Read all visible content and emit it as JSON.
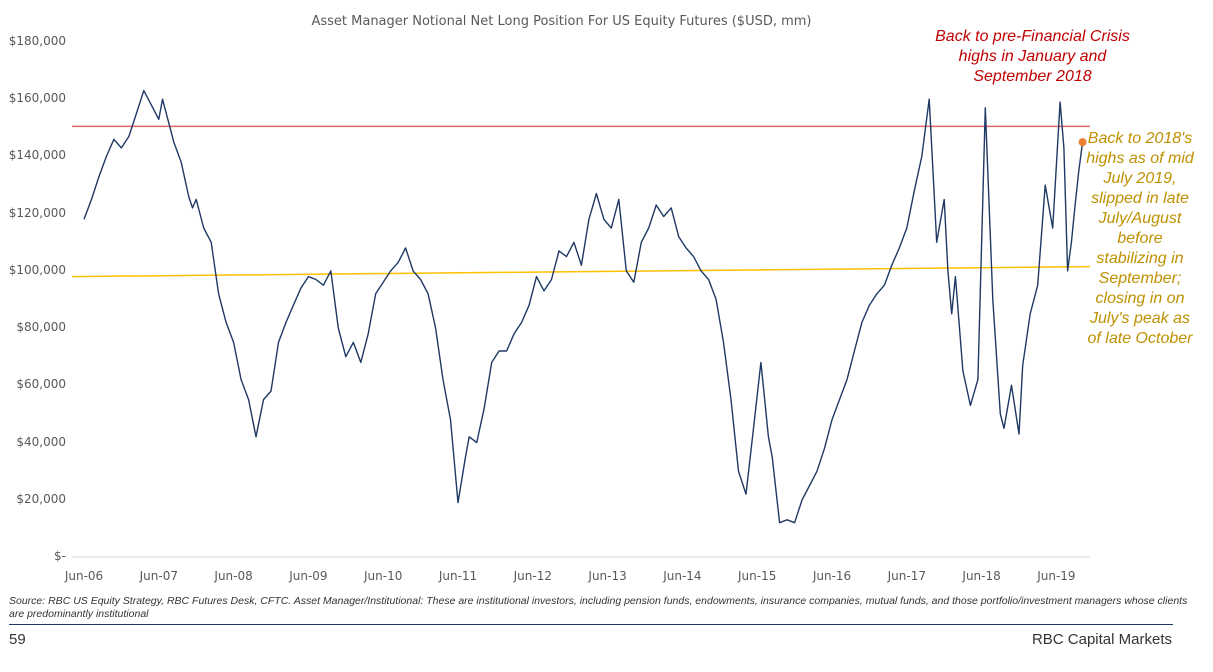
{
  "chart_data": {
    "type": "line",
    "title": "Asset Manager Notional Net Long Position For US Equity Futures ($USD, mm)",
    "xlabel": "",
    "ylabel": "",
    "ylim": [
      0,
      180000
    ],
    "y_ticks": [
      "$180,000",
      "$160,000",
      "$140,000",
      "$120,000",
      "$100,000",
      "$80,000",
      "$60,000",
      "$40,000",
      "$20,000",
      "$-"
    ],
    "x_ticks": [
      "Jun-06",
      "Jun-07",
      "Jun-08",
      "Jun-09",
      "Jun-10",
      "Jun-11",
      "Jun-12",
      "Jun-13",
      "Jun-14",
      "Jun-15",
      "Jun-16",
      "Jun-17",
      "Jun-18",
      "Jun-19"
    ],
    "grid": false,
    "series": [
      {
        "color": "#1f3864",
        "x": [
          2006.5,
          2006.6,
          2006.7,
          2006.8,
          2006.9,
          2007.0,
          2007.1,
          2007.2,
          2007.3,
          2007.4,
          2007.5,
          2007.55,
          2007.6,
          2007.7,
          2007.8,
          2007.9,
          2007.95,
          2008.0,
          2008.1,
          2008.2,
          2008.3,
          2008.4,
          2008.5,
          2008.6,
          2008.7,
          2008.8,
          2008.9,
          2009.0,
          2009.1,
          2009.2,
          2009.3,
          2009.4,
          2009.5,
          2009.6,
          2009.7,
          2009.8,
          2009.9,
          2010.0,
          2010.1,
          2010.2,
          2010.3,
          2010.4,
          2010.5,
          2010.6,
          2010.7,
          2010.8,
          2010.9,
          2011.0,
          2011.1,
          2011.2,
          2011.3,
          2011.4,
          2011.5,
          2011.6,
          2011.65,
          2011.75,
          2011.85,
          2011.95,
          2012.05,
          2012.15,
          2012.25,
          2012.35,
          2012.45,
          2012.55,
          2012.65,
          2012.75,
          2012.85,
          2012.95,
          2013.05,
          2013.15,
          2013.25,
          2013.35,
          2013.45,
          2013.55,
          2013.65,
          2013.75,
          2013.85,
          2013.95,
          2014.05,
          2014.15,
          2014.25,
          2014.35,
          2014.45,
          2014.55,
          2014.65,
          2014.75,
          2014.85,
          2014.95,
          2015.05,
          2015.15,
          2015.25,
          2015.35,
          2015.45,
          2015.55,
          2015.6,
          2015.65,
          2015.7,
          2015.8,
          2015.9,
          2016.0,
          2016.1,
          2016.2,
          2016.3,
          2016.4,
          2016.5,
          2016.6,
          2016.7,
          2016.8,
          2016.9,
          2017.0,
          2017.1,
          2017.2,
          2017.3,
          2017.4,
          2017.5,
          2017.6,
          2017.7,
          2017.8,
          2017.9,
          2018.0,
          2018.05,
          2018.1,
          2018.15,
          2018.25,
          2018.35,
          2018.45,
          2018.55,
          2018.65,
          2018.75,
          2018.8,
          2018.9,
          2019.0,
          2019.05,
          2019.15,
          2019.25,
          2019.35,
          2019.45,
          2019.55,
          2019.6,
          2019.65,
          2019.7,
          2019.75,
          2019.8,
          2019.85
        ],
        "values": [
          118000,
          125000,
          133000,
          140000,
          146000,
          143000,
          147000,
          155000,
          163000,
          158000,
          153000,
          160000,
          155000,
          145000,
          138000,
          126000,
          122000,
          125000,
          115000,
          110000,
          92000,
          82000,
          75000,
          62000,
          55000,
          42000,
          55000,
          58000,
          75000,
          82000,
          88000,
          94000,
          98000,
          97000,
          95000,
          100000,
          80000,
          70000,
          75000,
          68000,
          78000,
          92000,
          96000,
          100000,
          103000,
          108000,
          100000,
          97000,
          92000,
          80000,
          62000,
          48000,
          19000,
          35000,
          42000,
          40000,
          52000,
          68000,
          72000,
          72000,
          78000,
          82000,
          88000,
          98000,
          93000,
          97000,
          107000,
          105000,
          110000,
          102000,
          118000,
          127000,
          118000,
          115000,
          125000,
          100000,
          96000,
          110000,
          115000,
          123000,
          119000,
          122000,
          112000,
          108000,
          105000,
          100000,
          97000,
          90000,
          75000,
          55000,
          30000,
          22000,
          45000,
          68000,
          55000,
          42000,
          35000,
          12000,
          13000,
          12000,
          20000,
          25000,
          30000,
          38000,
          48000,
          55000,
          62000,
          72000,
          82000,
          88000,
          92000,
          95000,
          102000,
          108000,
          115000,
          128000,
          140000,
          160000,
          110000,
          125000,
          100000,
          85000,
          98000,
          65000,
          53000,
          62000,
          157000,
          90000,
          50000,
          45000,
          60000,
          43000,
          67000,
          85000,
          95000,
          130000,
          115000,
          159000,
          143000,
          100000,
          110000,
          123000,
          135000,
          145000
        ]
      }
    ],
    "reference_lines": [
      {
        "color": "#e06666",
        "y_start": 150500,
        "y_end": 150500
      },
      {
        "color": "#ffc000",
        "y_start": 98000,
        "y_end": 101500
      }
    ],
    "highlight_point": {
      "x": 2019.85,
      "y": 145000,
      "color": "#ed7d31"
    },
    "annotations": [
      {
        "text": "Back to pre-Financial Crisis highs in January and September 2018",
        "color": "#c00000"
      },
      {
        "text": "Back to 2018's highs as of mid July 2019, slipped in late July/August before stabilizing in September; closing in on July's peak as of late October",
        "color": "#bf9000"
      }
    ]
  },
  "footer": {
    "source": "Source: RBC US Equity Strategy, RBC Futures Desk, CFTC. Asset Manager/Institutional: These are institutional investors, including pension funds, endowments, insurance companies, mutual funds, and those portfolio/investment managers whose clients are predominantly institutional",
    "page_number": "59",
    "brand": "RBC Capital Markets"
  }
}
